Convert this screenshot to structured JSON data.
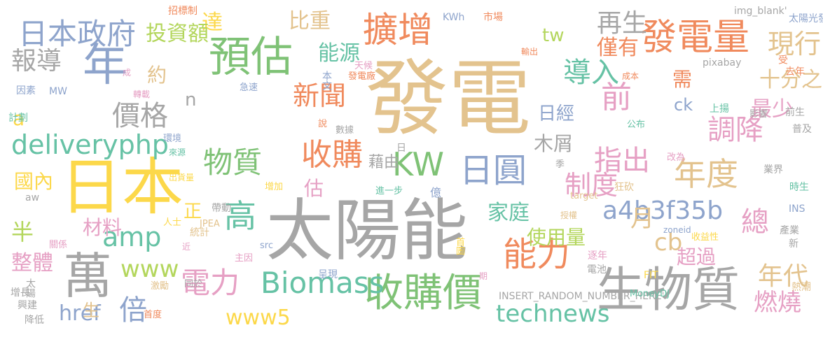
{
  "cloud": {
    "words": [
      {
        "text": "發電",
        "color": "#e3c38e"
      },
      {
        "text": "太陽能",
        "color": "#a6a6a6"
      },
      {
        "text": "日本",
        "color": "#fcd84a"
      },
      {
        "text": "生物質",
        "color": "#a6a6a6"
      },
      {
        "text": "收購價",
        "color": "#7fc276"
      },
      {
        "text": "預估",
        "color": "#7fc276"
      },
      {
        "text": "年",
        "color": "#8ea4cc"
      },
      {
        "text": "萬",
        "color": "#a6a6a6"
      },
      {
        "text": "發電量",
        "color": "#f08a5d"
      },
      {
        "text": "擴增",
        "color": "#f08a5d"
      },
      {
        "text": "日本政府",
        "color": "#8ea4cc"
      },
      {
        "text": "KW",
        "color": "#7fc276"
      },
      {
        "text": "日圓",
        "color": "#8ea4cc"
      },
      {
        "text": "收購",
        "color": "#f08a5d"
      },
      {
        "text": "物質",
        "color": "#7fc276"
      },
      {
        "text": "電力",
        "color": "#e6a0c4"
      },
      {
        "text": "能力",
        "color": "#f08a5d"
      },
      {
        "text": "年度",
        "color": "#e3c38e"
      },
      {
        "text": "價格",
        "color": "#a6a6a6"
      },
      {
        "text": "deliveryphp",
        "color": "#66c2a5"
      },
      {
        "text": "technews",
        "color": "#66c2a5"
      },
      {
        "text": "www5",
        "color": "#fcd84a"
      },
      {
        "text": "a4b3f35b",
        "color": "#8ea4cc"
      },
      {
        "text": "amp",
        "color": "#66c2a5"
      },
      {
        "text": "www",
        "color": "#b3d65c"
      },
      {
        "text": "Biomass",
        "color": "#66c2a5"
      },
      {
        "text": "倍",
        "color": "#8ea4cc"
      },
      {
        "text": "高",
        "color": "#66c2a5"
      },
      {
        "text": "前",
        "color": "#e6a0c4"
      },
      {
        "text": "導入",
        "color": "#66c2a5"
      },
      {
        "text": "調降",
        "color": "#e6a0c4"
      },
      {
        "text": "指出",
        "color": "#e6a0c4"
      },
      {
        "text": "報導",
        "color": "#a6a6a6"
      },
      {
        "text": "新聞",
        "color": "#f08a5d"
      },
      {
        "text": "制度",
        "color": "#e6a0c4"
      },
      {
        "text": "現行",
        "color": "#e3c38e"
      },
      {
        "text": "總",
        "color": "#e6a0c4"
      },
      {
        "text": "cb",
        "color": "#e3c38e"
      },
      {
        "text": "月",
        "color": "#e3c38e"
      },
      {
        "text": "年代",
        "color": "#e3c38e"
      },
      {
        "text": "燃燒",
        "color": "#e6a0c4"
      },
      {
        "text": "達",
        "color": "#fcd84a"
      },
      {
        "text": "比重",
        "color": "#e3c38e"
      },
      {
        "text": "投資額",
        "color": "#b3d65c"
      },
      {
        "text": "能源",
        "color": "#66c2a5"
      },
      {
        "text": "約",
        "color": "#e3c38e"
      },
      {
        "text": "半",
        "color": "#b3d65c"
      },
      {
        "text": "材料",
        "color": "#e6a0c4"
      },
      {
        "text": "整體",
        "color": "#e6a0c4"
      },
      {
        "text": "估",
        "color": "#e6a0c4"
      },
      {
        "text": "家庭",
        "color": "#66c2a5"
      },
      {
        "text": "使用量",
        "color": "#b3d65c"
      },
      {
        "text": "超過",
        "color": "#e6a0c4"
      },
      {
        "text": "十分之一",
        "color": "#e3c38e"
      },
      {
        "text": "最少",
        "color": "#e6a0c4"
      },
      {
        "text": "需",
        "color": "#f08a5d"
      },
      {
        "text": "日經",
        "color": "#8ea4cc"
      },
      {
        "text": "木屑",
        "color": "#a6a6a6"
      },
      {
        "text": "再生",
        "color": "#a6a6a6"
      },
      {
        "text": "僅有",
        "color": "#f08a5d"
      },
      {
        "text": "tw",
        "color": "#b3d65c"
      },
      {
        "text": "ck",
        "color": "#8ea4cc"
      },
      {
        "text": "藉由",
        "color": "#a6a6a6"
      },
      {
        "text": "n",
        "color": "#a6a6a6"
      },
      {
        "text": "a",
        "color": "#fcd84a"
      },
      {
        "text": "國內",
        "color": "#fcd84a"
      },
      {
        "text": "href",
        "color": "#8ea4cc"
      },
      {
        "text": "生",
        "color": "#e3c38e"
      },
      {
        "text": "正",
        "color": "#fcd84a"
      },
      {
        "text": "日",
        "color": "#a6a6a6"
      },
      {
        "text": "億",
        "color": "#8ea4cc"
      },
      {
        "text": "INSERT_RANDOM_NUMBER_HERE'",
        "color": "#a6a6a6"
      },
      {
        "text": "pixabay",
        "color": "#a6a6a6"
      },
      {
        "text": "img_blank'",
        "color": "#a6a6a6"
      },
      {
        "text": "太陽光發電協會",
        "color": "#8ea4cc"
      },
      {
        "text": "KWh",
        "color": "#8ea4cc"
      },
      {
        "text": "市場",
        "color": "#f08a5d"
      },
      {
        "text": "招標制",
        "color": "#f08a5d"
      },
      {
        "text": "輸出",
        "color": "#f08a5d"
      },
      {
        "text": "受",
        "color": "#f08a5d"
      },
      {
        "text": "去年",
        "color": "#f08a5d"
      },
      {
        "text": "成",
        "color": "#e6a0c4"
      },
      {
        "text": "天候",
        "color": "#e6a0c4"
      },
      {
        "text": "發電廠",
        "color": "#f08a5d"
      },
      {
        "text": "成本",
        "color": "#f08a5d"
      },
      {
        "text": "本文",
        "color": "#8ea4cc"
      },
      {
        "text": "因素",
        "color": "#8ea4cc"
      },
      {
        "text": "MW",
        "color": "#8ea4cc"
      },
      {
        "text": "轉載",
        "color": "#e6a0c4"
      },
      {
        "text": "急速",
        "color": "#8ea4cc"
      },
      {
        "text": "前生",
        "color": "#a6a6a6"
      },
      {
        "text": "影響",
        "color": "#a6a6a6"
      },
      {
        "text": "普及",
        "color": "#a6a6a6"
      },
      {
        "text": "上揚",
        "color": "#66c2a5"
      },
      {
        "text": "公布",
        "color": "#66c2a5"
      },
      {
        "text": "說",
        "color": "#f08a5d"
      },
      {
        "text": "數據",
        "color": "#a6a6a6"
      },
      {
        "text": "環境",
        "color": "#8ea4cc"
      },
      {
        "text": "計劃",
        "color": "#66c2a5"
      },
      {
        "text": "來源",
        "color": "#66c2a5"
      },
      {
        "text": "出貨量",
        "color": "#fcd84a"
      },
      {
        "text": "aw",
        "color": "#a6a6a6"
      },
      {
        "text": "帶動",
        "color": "#a6a6a6"
      },
      {
        "text": "增加",
        "color": "#fcd84a"
      },
      {
        "text": "進一步",
        "color": "#66c2a5"
      },
      {
        "text": "季",
        "color": "#a6a6a6"
      },
      {
        "text": "改為",
        "color": "#e6a0c4"
      },
      {
        "text": "業界",
        "color": "#a6a6a6"
      },
      {
        "text": "時生",
        "color": "#66c2a5"
      },
      {
        "text": "INS",
        "color": "#8ea4cc"
      },
      {
        "text": "target",
        "color": "#e3c38e"
      },
      {
        "text": "狂砍",
        "color": "#e3c38e"
      },
      {
        "text": "授權",
        "color": "#e3c38e"
      },
      {
        "text": "zoneid",
        "color": "#8ea4cc"
      },
      {
        "text": "收益性",
        "color": "#fcd84a"
      },
      {
        "text": "產業",
        "color": "#a6a6a6"
      },
      {
        "text": "新",
        "color": "#a6a6a6"
      },
      {
        "text": "人士",
        "color": "#fcd84a"
      },
      {
        "text": "JPEA",
        "color": "#e3c38e"
      },
      {
        "text": "統計",
        "color": "#e3c38e"
      },
      {
        "text": "關係",
        "color": "#e6a0c4"
      },
      {
        "text": "近",
        "color": "#e6a0c4"
      },
      {
        "text": "src",
        "color": "#8ea4cc"
      },
      {
        "text": "主因",
        "color": "#e6a0c4"
      },
      {
        "text": "首圖",
        "color": "#fcd84a"
      },
      {
        "text": "逐年",
        "color": "#e6a0c4"
      },
      {
        "text": "電池",
        "color": "#a6a6a6"
      },
      {
        "text": "期",
        "color": "#e6a0c4"
      },
      {
        "text": "FIT",
        "color": "#fcd84a"
      },
      {
        "text": "MoneyDJ",
        "color": "#66c2a5"
      },
      {
        "text": "熱潮",
        "color": "#e3c38e"
      },
      {
        "text": "呈現",
        "color": "#8ea4cc"
      },
      {
        "text": "增長",
        "color": "#a6a6a6"
      },
      {
        "text": "太陽",
        "color": "#a6a6a6"
      },
      {
        "text": "激勵",
        "color": "#e3c38e"
      },
      {
        "text": "同於",
        "color": "#a6a6a6"
      },
      {
        "text": "興建",
        "color": "#a6a6a6"
      },
      {
        "text": "降低",
        "color": "#a6a6a6"
      },
      {
        "text": "首度",
        "color": "#f08a5d"
      },
      {
        "text": "嚴峻",
        "color": "#e6a0c4"
      },
      {
        "text": "觸底",
        "color": "#e6a0c4"
      },
      {
        "text": "上季",
        "color": "#e6a0c4"
      }
    ]
  }
}
